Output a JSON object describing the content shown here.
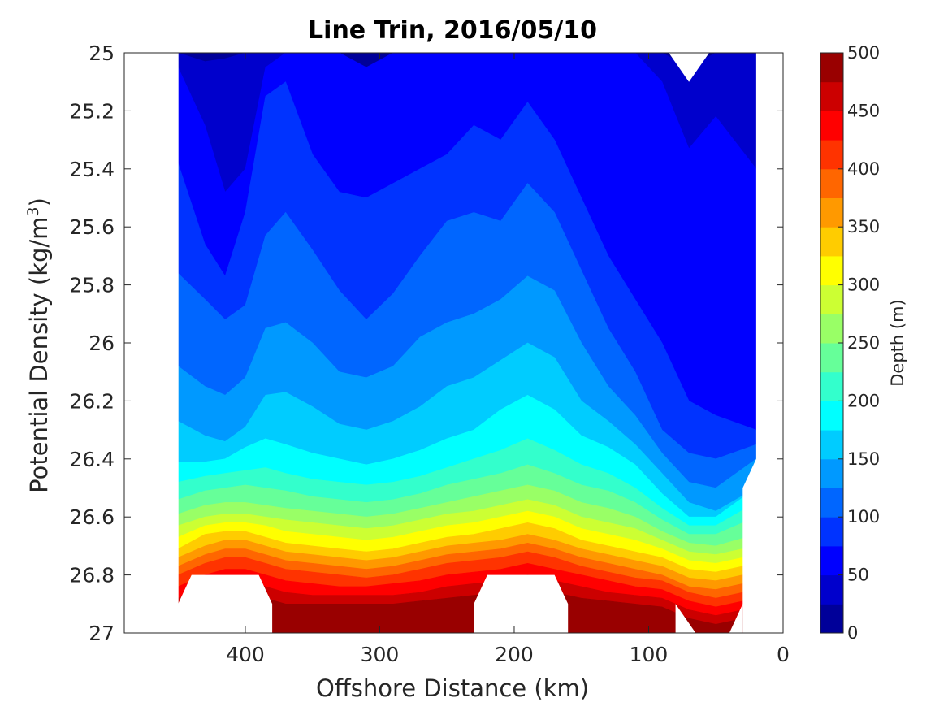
{
  "chart_data": {
    "type": "contour",
    "title": "Line Trin, 2016/05/10",
    "xlabel": "Offshore Distance (km)",
    "ylabel": "Potential Density (kg/m",
    "ylabel_sup": "3",
    "ylabel_close": ")",
    "xlim": [
      490,
      0
    ],
    "ylim": [
      25,
      27
    ],
    "x_reversed": true,
    "y_reversed": true,
    "x_ticks": [
      "400",
      "300",
      "200",
      "100",
      "0"
    ],
    "x_tick_values": [
      400,
      300,
      200,
      100,
      0
    ],
    "y_ticks": [
      "25",
      "25.2",
      "25.4",
      "25.6",
      "25.8",
      "26",
      "26.2",
      "26.4",
      "26.6",
      "26.8",
      "27"
    ],
    "y_tick_values": [
      25,
      25.2,
      25.4,
      25.6,
      25.8,
      26,
      26.2,
      26.4,
      26.6,
      26.8,
      27
    ],
    "colorbar": {
      "label": "Depth (m)",
      "range": [
        0,
        500
      ],
      "levels": 20,
      "ticks": [
        "0",
        "50",
        "100",
        "150",
        "200",
        "250",
        "300",
        "350",
        "400",
        "450",
        "500"
      ],
      "tick_values": [
        0,
        50,
        100,
        150,
        200,
        250,
        300,
        350,
        400,
        450,
        500
      ],
      "colormap": "jet"
    },
    "contour_isolines_depth_m": [
      25,
      50,
      75,
      100,
      125,
      150,
      175,
      200,
      225,
      250,
      275,
      300,
      325,
      350,
      375,
      400,
      425,
      450,
      475
    ],
    "stations_km": [
      450,
      430,
      415,
      400,
      385,
      370,
      350,
      330,
      310,
      290,
      270,
      250,
      230,
      210,
      190,
      170,
      150,
      130,
      110,
      90,
      70,
      50,
      20
    ],
    "isoline_density": [
      [
        25.0,
        25.03,
        25.02,
        25.0,
        25.0,
        25.0,
        25.0,
        25.05,
        25.1,
        25.05,
        25.0,
        25.0,
        25.0,
        25.0,
        25.0,
        25.0,
        25.0,
        25.0,
        25.0,
        25.0,
        25.05,
        25.0,
        25.0
      ],
      [
        25.05,
        25.25,
        25.48,
        25.4,
        25.05,
        25.0,
        25.0,
        25.0,
        25.05,
        25.0,
        25.0,
        25.0,
        25.0,
        25.0,
        25.0,
        25.0,
        25.0,
        25.0,
        25.0,
        25.1,
        25.33,
        25.22,
        25.4
      ],
      [
        25.38,
        25.66,
        25.77,
        25.55,
        25.15,
        25.1,
        25.35,
        25.48,
        25.5,
        25.45,
        25.4,
        25.35,
        25.25,
        25.3,
        25.17,
        25.3,
        25.5,
        25.7,
        25.85,
        26.0,
        26.2,
        26.25,
        26.3
      ],
      [
        25.76,
        25.85,
        25.92,
        25.87,
        25.63,
        25.55,
        25.68,
        25.82,
        25.92,
        25.83,
        25.7,
        25.58,
        25.55,
        25.58,
        25.45,
        25.55,
        25.75,
        25.95,
        26.1,
        26.3,
        26.38,
        26.4,
        26.35
      ],
      [
        26.08,
        26.15,
        26.18,
        26.12,
        25.95,
        25.93,
        26.0,
        26.1,
        26.12,
        26.08,
        25.98,
        25.93,
        25.9,
        25.85,
        25.77,
        25.82,
        26.0,
        26.15,
        26.25,
        26.38,
        26.48,
        26.5,
        26.4
      ],
      [
        26.27,
        26.32,
        26.34,
        26.29,
        26.18,
        26.17,
        26.22,
        26.28,
        26.3,
        26.27,
        26.22,
        26.15,
        26.12,
        26.06,
        26.0,
        26.05,
        26.2,
        26.27,
        26.35,
        26.45,
        26.55,
        26.58,
        26.5
      ],
      [
        26.41,
        26.41,
        26.4,
        26.36,
        26.33,
        26.35,
        26.38,
        26.4,
        26.42,
        26.4,
        26.37,
        26.33,
        26.3,
        26.23,
        26.18,
        26.23,
        26.32,
        26.36,
        26.42,
        26.52,
        26.6,
        26.6,
        26.5
      ],
      [
        26.48,
        26.46,
        26.45,
        26.44,
        26.43,
        26.45,
        26.47,
        26.48,
        26.49,
        26.48,
        26.46,
        26.43,
        26.4,
        26.37,
        26.33,
        26.37,
        26.42,
        26.45,
        26.5,
        26.57,
        26.63,
        26.63,
        26.55
      ],
      [
        26.54,
        26.51,
        26.5,
        26.49,
        26.5,
        26.51,
        26.53,
        26.54,
        26.55,
        26.54,
        26.52,
        26.49,
        26.47,
        26.45,
        26.42,
        26.45,
        26.49,
        26.51,
        26.55,
        26.61,
        26.66,
        26.66,
        26.6
      ],
      [
        26.59,
        26.56,
        26.55,
        26.55,
        26.56,
        26.57,
        26.58,
        26.59,
        26.6,
        26.59,
        26.57,
        26.55,
        26.53,
        26.51,
        26.49,
        26.51,
        26.55,
        26.57,
        26.6,
        26.65,
        26.69,
        26.7,
        26.66
      ],
      [
        26.63,
        26.6,
        26.59,
        26.59,
        26.6,
        26.61,
        26.62,
        26.63,
        26.64,
        26.63,
        26.61,
        26.59,
        26.58,
        26.56,
        26.54,
        26.56,
        26.6,
        26.62,
        26.64,
        26.68,
        26.72,
        26.73,
        26.7
      ],
      [
        26.67,
        26.63,
        26.62,
        26.62,
        26.63,
        26.65,
        26.66,
        26.67,
        26.68,
        26.67,
        26.65,
        26.63,
        26.62,
        26.6,
        26.58,
        26.6,
        26.64,
        26.66,
        26.68,
        26.71,
        26.75,
        26.76,
        26.73
      ],
      [
        26.71,
        26.66,
        26.65,
        26.65,
        26.67,
        26.69,
        26.7,
        26.71,
        26.72,
        26.71,
        26.69,
        26.67,
        26.66,
        26.64,
        26.62,
        26.64,
        26.68,
        26.7,
        26.72,
        26.74,
        26.78,
        26.79,
        26.76
      ],
      [
        26.74,
        26.7,
        26.68,
        26.68,
        26.7,
        26.72,
        26.73,
        26.74,
        26.75,
        26.74,
        26.72,
        26.7,
        26.69,
        26.68,
        26.66,
        26.68,
        26.71,
        26.73,
        26.75,
        26.77,
        26.81,
        26.82,
        26.79
      ],
      [
        26.77,
        26.73,
        26.71,
        26.71,
        26.73,
        26.75,
        26.76,
        26.77,
        26.78,
        26.77,
        26.75,
        26.73,
        26.72,
        26.71,
        26.69,
        26.71,
        26.74,
        26.76,
        26.78,
        26.8,
        26.84,
        26.85,
        26.82
      ],
      [
        26.8,
        26.76,
        26.74,
        26.74,
        26.76,
        26.78,
        26.79,
        26.8,
        26.81,
        26.8,
        26.78,
        26.76,
        26.75,
        26.74,
        26.72,
        26.74,
        26.77,
        26.79,
        26.81,
        26.82,
        26.86,
        26.88,
        26.85
      ],
      [
        26.84,
        26.8,
        26.78,
        26.78,
        26.8,
        26.82,
        26.83,
        26.84,
        26.84,
        26.83,
        26.82,
        26.8,
        26.79,
        26.78,
        26.76,
        26.78,
        26.8,
        26.82,
        26.84,
        26.85,
        26.89,
        26.91,
        26.88
      ],
      [
        26.88,
        26.84,
        26.82,
        26.82,
        26.84,
        26.86,
        26.87,
        26.87,
        26.87,
        26.87,
        26.86,
        26.84,
        26.83,
        26.82,
        26.8,
        26.82,
        26.84,
        26.86,
        26.87,
        26.88,
        26.92,
        26.94,
        26.91
      ],
      [
        26.92,
        26.88,
        26.86,
        26.86,
        26.88,
        26.9,
        26.9,
        26.9,
        26.9,
        26.9,
        26.89,
        26.88,
        26.87,
        26.86,
        26.84,
        26.86,
        26.88,
        26.89,
        26.9,
        26.91,
        26.95,
        26.97,
        26.94
      ]
    ],
    "masked_regions_km_density": [
      {
        "name": "top-right-notch",
        "points": [
          [
            85,
            25.0
          ],
          [
            70,
            25.1
          ],
          [
            55,
            25.0
          ]
        ]
      },
      {
        "name": "right-gap",
        "points": [
          [
            20,
            25.0
          ],
          [
            20,
            26.4
          ],
          [
            30,
            26.5
          ],
          [
            30,
            27.0
          ],
          [
            0,
            27.0
          ],
          [
            0,
            25.0
          ]
        ]
      },
      {
        "name": "bottom-gap-1",
        "points": [
          [
            450,
            26.9
          ],
          [
            440,
            26.8
          ],
          [
            390,
            26.8
          ],
          [
            380,
            26.9
          ],
          [
            380,
            27.0
          ],
          [
            450,
            27.0
          ]
        ]
      },
      {
        "name": "bottom-gap-2",
        "points": [
          [
            230,
            26.9
          ],
          [
            220,
            26.8
          ],
          [
            170,
            26.8
          ],
          [
            160,
            26.9
          ],
          [
            160,
            27.0
          ],
          [
            230,
            27.0
          ]
        ]
      },
      {
        "name": "bottom-gap-3",
        "points": [
          [
            80,
            26.9
          ],
          [
            65,
            27.0
          ],
          [
            40,
            27.0
          ],
          [
            30,
            26.9
          ],
          [
            30,
            27.0
          ],
          [
            80,
            27.0
          ]
        ]
      }
    ]
  }
}
